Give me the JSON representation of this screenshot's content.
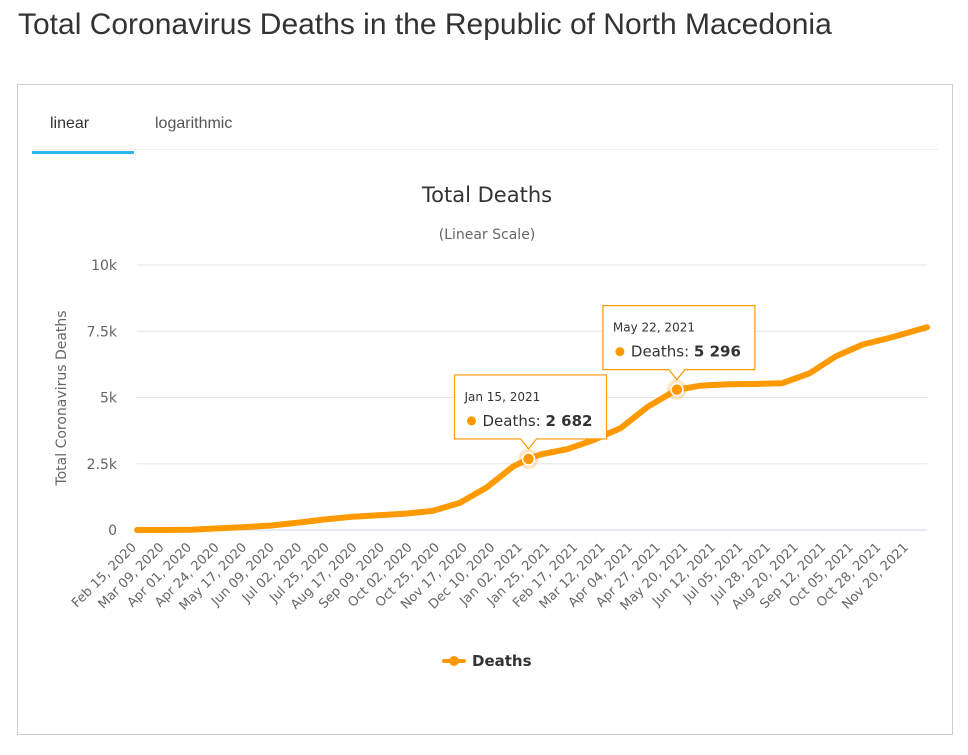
{
  "page": {
    "title": "Total Coronavirus Deaths in the Republic of North Macedonia"
  },
  "tabs": [
    {
      "label": "linear",
      "active": true
    },
    {
      "label": "logarithmic",
      "active": false
    }
  ],
  "colors": {
    "series": "#ff9900",
    "tab_active": "#2bb5e8",
    "grid": "#e6e6e6"
  },
  "chart_data": {
    "type": "line",
    "title": "Total Deaths",
    "subtitle": "(Linear Scale)",
    "ylabel": "Total Coronavirus Deaths",
    "xlabel": "",
    "ylim": [
      0,
      10000
    ],
    "yticks": [
      {
        "value": 0,
        "label": "0"
      },
      {
        "value": 2500,
        "label": "2.5k"
      },
      {
        "value": 5000,
        "label": "5k"
      },
      {
        "value": 7500,
        "label": "7.5k"
      },
      {
        "value": 10000,
        "label": "10k"
      }
    ],
    "x_range": [
      "2020-02-15",
      "2021-12-22"
    ],
    "x_tick_labels": [
      "Feb 15, 2020",
      "Mar 09, 2020",
      "Apr 01, 2020",
      "Apr 24, 2020",
      "May 17, 2020",
      "Jun 09, 2020",
      "Jul 02, 2020",
      "Jul 25, 2020",
      "Aug 17, 2020",
      "Sep 09, 2020",
      "Oct 02, 2020",
      "Oct 25, 2020",
      "Nov 17, 2020",
      "Dec 10, 2020",
      "Jan 02, 2021",
      "Jan 25, 2021",
      "Feb 17, 2021",
      "Mar 12, 2021",
      "Apr 04, 2021",
      "Apr 27, 2021",
      "May 20, 2021",
      "Jun 12, 2021",
      "Jul 05, 2021",
      "Jul 28, 2021",
      "Aug 20, 2021",
      "Sep 12, 2021",
      "Oct 05, 2021",
      "Oct 28, 2021",
      "Nov 20, 2021"
    ],
    "grid": true,
    "legend_position": "bottom-center",
    "series": [
      {
        "name": "Deaths",
        "points": [
          [
            "2020-02-15",
            0
          ],
          [
            "2020-03-09",
            0
          ],
          [
            "2020-04-01",
            10
          ],
          [
            "2020-04-24",
            60
          ],
          [
            "2020-05-17",
            110
          ],
          [
            "2020-06-09",
            170
          ],
          [
            "2020-07-02",
            280
          ],
          [
            "2020-07-25",
            400
          ],
          [
            "2020-08-17",
            500
          ],
          [
            "2020-09-09",
            560
          ],
          [
            "2020-10-02",
            620
          ],
          [
            "2020-10-25",
            720
          ],
          [
            "2020-11-17",
            1020
          ],
          [
            "2020-12-10",
            1600
          ],
          [
            "2021-01-02",
            2400
          ],
          [
            "2021-01-15",
            2682
          ],
          [
            "2021-01-25",
            2850
          ],
          [
            "2021-02-17",
            3050
          ],
          [
            "2021-03-12",
            3400
          ],
          [
            "2021-04-04",
            3850
          ],
          [
            "2021-04-27",
            4650
          ],
          [
            "2021-05-22",
            5296
          ],
          [
            "2021-06-12",
            5450
          ],
          [
            "2021-07-05",
            5500
          ],
          [
            "2021-07-28",
            5510
          ],
          [
            "2021-08-20",
            5540
          ],
          [
            "2021-09-12",
            5900
          ],
          [
            "2021-10-05",
            6550
          ],
          [
            "2021-10-28",
            7000
          ],
          [
            "2021-11-20",
            7250
          ],
          [
            "2021-12-22",
            7650
          ]
        ]
      }
    ],
    "tooltips": [
      {
        "date": "2021-01-15",
        "value": 2682,
        "date_label": "Jan 15, 2021",
        "series_label": "Deaths: ",
        "value_label": "2 682"
      },
      {
        "date": "2021-05-22",
        "value": 5296,
        "date_label": "May 22, 2021",
        "series_label": "Deaths: ",
        "value_label": "5 296"
      }
    ],
    "legend": [
      {
        "label": "Deaths"
      }
    ]
  }
}
